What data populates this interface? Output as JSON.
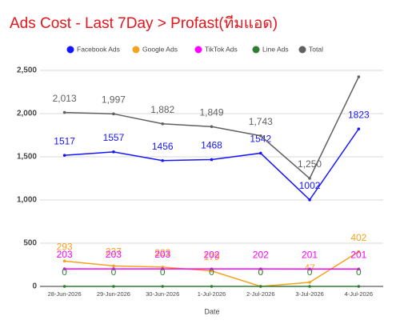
{
  "chart_data": {
    "type": "line",
    "title": "Ads Cost - Last 7Day > Profast(ทีมแอด)",
    "x_label": "Date",
    "categories": [
      "28-Jun-2026",
      "29-Jun-2026",
      "30-Jun-2026",
      "1-Jul-2026",
      "2-Jul-2026",
      "3-Jul-2026",
      "4-Jul-2026"
    ],
    "series": [
      {
        "name": "Facebook Ads",
        "color": "#1515ff",
        "values": [
          1517,
          1557,
          1456,
          1468,
          1542,
          1002,
          1823
        ]
      },
      {
        "name": "Google Ads",
        "color": "#f5a21e",
        "values": [
          293,
          237,
          223,
          179,
          0,
          47,
          402
        ]
      },
      {
        "name": "TikTok Ads",
        "color": "#ff00ff",
        "values": [
          203,
          203,
          203,
          202,
          202,
          201,
          201
        ]
      },
      {
        "name": "Line Ads",
        "color": "#2e7d32",
        "values": [
          0,
          0,
          0,
          0,
          0,
          0,
          0
        ]
      },
      {
        "name": "Total",
        "color": "#616161",
        "values": [
          2013,
          1997,
          1882,
          1849,
          1743,
          1250,
          2426
        ],
        "value_labels": [
          "2,013",
          "1,997",
          "1,882",
          "1,849",
          "1,743",
          "1,250",
          null
        ]
      }
    ],
    "ylim": [
      0,
      2500
    ],
    "yticks": [
      0,
      500,
      {
        "value": 1000,
        "label": "1,000"
      },
      {
        "value": 1500,
        "label": "1,500"
      },
      {
        "value": 2000,
        "label": "2,000"
      },
      {
        "value": 2500,
        "label": "2,500"
      }
    ],
    "grid": true,
    "legend": "top"
  }
}
